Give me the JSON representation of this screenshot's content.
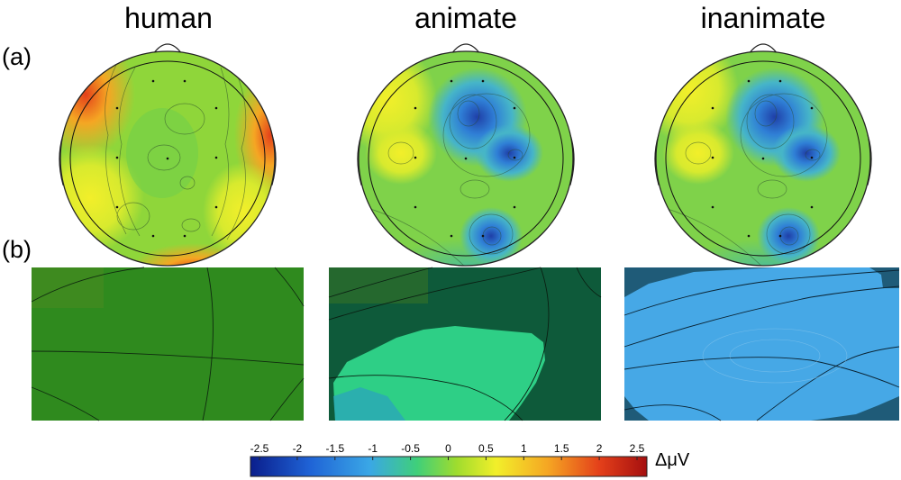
{
  "panels": {
    "columns": [
      {
        "title": "human"
      },
      {
        "title": "animate"
      },
      {
        "title": "inanimate"
      }
    ],
    "row_labels": {
      "a": "(a)",
      "b": "(b)"
    }
  },
  "colorbar": {
    "ticks": [
      "-2.5",
      "-2",
      "-1.5",
      "-1",
      "-0.5",
      "0",
      "0.5",
      "1",
      "1.5",
      "2",
      "2.5"
    ],
    "unit": "ΔμV",
    "range": [
      -2.5,
      2.5
    ],
    "colors": [
      "#0a1e8c",
      "#1f63d6",
      "#3aa7e6",
      "#3fcf7a",
      "#9fdc2e",
      "#f2ef2a",
      "#f5a623",
      "#e4401a",
      "#a50f0f"
    ]
  }
}
